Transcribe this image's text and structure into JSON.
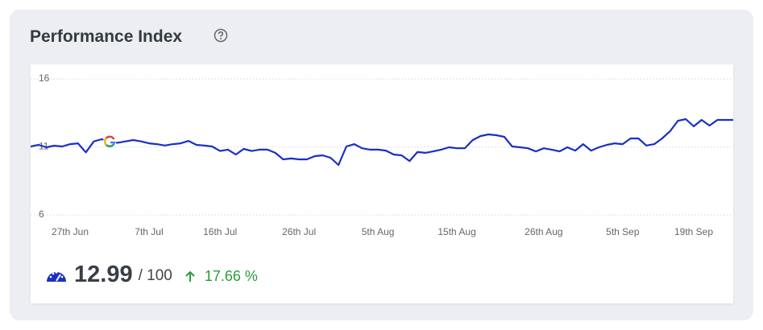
{
  "header": {
    "title": "Performance Index"
  },
  "chart_data": {
    "type": "line",
    "color": "#1a2fc4",
    "grid": true,
    "ylim": [
      6,
      16
    ],
    "yticks": [
      6,
      11,
      16
    ],
    "categories": [
      null,
      null,
      null,
      null,
      null,
      "27th Jun",
      null,
      null,
      null,
      null,
      null,
      null,
      null,
      null,
      null,
      "7th Jul",
      null,
      null,
      null,
      null,
      null,
      null,
      null,
      null,
      "16th Jul",
      null,
      null,
      null,
      null,
      null,
      null,
      null,
      null,
      null,
      "26th Jul",
      null,
      null,
      null,
      null,
      null,
      null,
      null,
      null,
      null,
      "5th Aug",
      null,
      null,
      null,
      null,
      null,
      null,
      null,
      null,
      null,
      "15th Aug",
      null,
      null,
      null,
      null,
      null,
      null,
      null,
      null,
      null,
      null,
      "26th Aug",
      null,
      null,
      null,
      null,
      null,
      null,
      null,
      null,
      null,
      "5th Sep",
      null,
      null,
      null,
      null,
      null,
      null,
      null,
      null,
      "19th Sep",
      null,
      null,
      null,
      null,
      null
    ],
    "values": [
      11.03,
      11.15,
      10.97,
      11.09,
      11.03,
      11.2,
      11.26,
      10.6,
      11.4,
      11.56,
      11.4,
      11.3,
      11.4,
      11.5,
      11.4,
      11.26,
      11.2,
      11.1,
      11.2,
      11.26,
      11.44,
      11.15,
      11.1,
      11.03,
      10.7,
      10.8,
      10.44,
      10.85,
      10.7,
      10.8,
      10.8,
      10.56,
      10.08,
      10.15,
      10.08,
      10.08,
      10.32,
      10.38,
      10.2,
      9.67,
      11.03,
      11.2,
      10.9,
      10.8,
      10.8,
      10.73,
      10.44,
      10.38,
      9.96,
      10.62,
      10.56,
      10.67,
      10.8,
      10.97,
      10.9,
      10.9,
      11.5,
      11.8,
      11.92,
      11.86,
      11.74,
      11.03,
      10.97,
      10.9,
      10.67,
      10.9,
      10.8,
      10.67,
      10.97,
      10.73,
      11.2,
      10.73,
      10.97,
      11.15,
      11.26,
      11.2,
      11.62,
      11.62,
      11.1,
      11.2,
      11.62,
      12.15,
      12.92,
      13.04,
      12.51,
      12.98,
      12.57,
      12.98,
      12.98,
      12.98
    ]
  },
  "summary": {
    "value": "12.99",
    "max_label": "/ 100",
    "change": "17.66 %"
  }
}
